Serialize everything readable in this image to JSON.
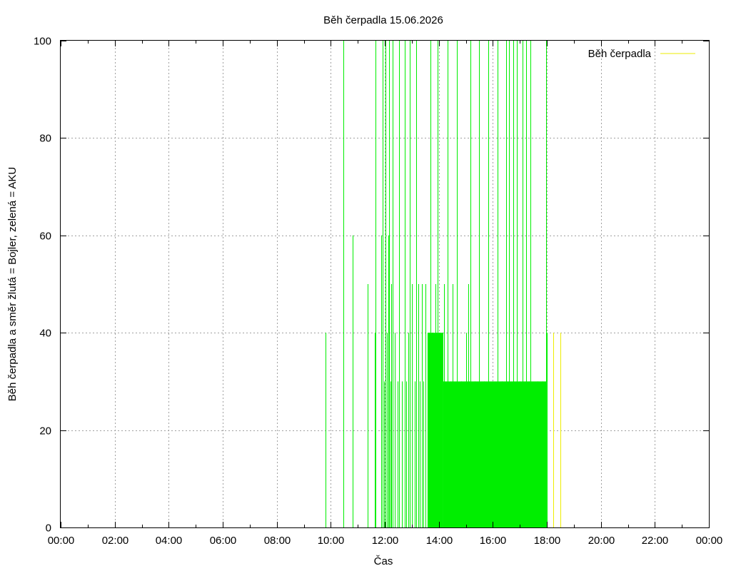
{
  "chart_data": {
    "type": "line",
    "title": "Běh čerpadla 15.06.2026",
    "xlabel": "Čas",
    "ylabel": "Běh čerpadla a směr žlutá = Bojler, zelená = AKU",
    "x_ticks": [
      "00:00",
      "02:00",
      "04:00",
      "06:00",
      "08:00",
      "10:00",
      "12:00",
      "14:00",
      "16:00",
      "18:00",
      "20:00",
      "22:00",
      "00:00"
    ],
    "xlim": [
      0,
      24
    ],
    "ylim": [
      0,
      100
    ],
    "y_ticks": [
      0,
      20,
      40,
      60,
      80,
      100
    ],
    "grid": true,
    "legend": {
      "position": "top-right",
      "entries": [
        "Běh čerpadla"
      ]
    },
    "colors": {
      "aku": "#00ee00",
      "bojler": "#eeee00",
      "legend_line": "#eeee00"
    },
    "series": [
      {
        "name": "Běh čerpadla",
        "color": "#eeee00",
        "spikes": [
          {
            "x": "18:15",
            "y": 40
          },
          {
            "x": "18:30",
            "y": 40
          }
        ]
      },
      {
        "color": "#00ee00",
        "spikes": [
          {
            "x": "09:48",
            "y": 40
          },
          {
            "x": "10:28",
            "y": 100
          },
          {
            "x": "10:48",
            "y": 60
          },
          {
            "x": "11:22",
            "y": 50
          },
          {
            "x": "11:38",
            "y": 40
          },
          {
            "x": "11:40",
            "y": 100
          },
          {
            "x": "11:52",
            "y": 60
          },
          {
            "x": "11:55",
            "y": 100
          },
          {
            "x": "11:58",
            "y": 30
          },
          {
            "x": "12:02",
            "y": 100
          },
          {
            "x": "12:05",
            "y": 40
          },
          {
            "x": "12:08",
            "y": 60
          },
          {
            "x": "12:10",
            "y": 100
          },
          {
            "x": "12:12",
            "y": 30
          },
          {
            "x": "12:14",
            "y": 50
          },
          {
            "x": "12:18",
            "y": 100
          },
          {
            "x": "12:22",
            "y": 40
          },
          {
            "x": "12:28",
            "y": 30
          },
          {
            "x": "12:32",
            "y": 100
          },
          {
            "x": "12:38",
            "y": 30
          },
          {
            "x": "12:44",
            "y": 100
          },
          {
            "x": "12:48",
            "y": 30
          },
          {
            "x": "12:52",
            "y": 40
          },
          {
            "x": "12:56",
            "y": 100
          },
          {
            "x": "13:00",
            "y": 50
          },
          {
            "x": "13:06",
            "y": 30
          },
          {
            "x": "13:10",
            "y": 100
          },
          {
            "x": "13:14",
            "y": 50
          },
          {
            "x": "13:18",
            "y": 30
          },
          {
            "x": "13:22",
            "y": 50
          },
          {
            "x": "13:26",
            "y": 30
          },
          {
            "x": "13:30",
            "y": 50
          },
          {
            "x": "13:38",
            "y": 40
          },
          {
            "x": "13:42",
            "y": 100
          },
          {
            "x": "13:46",
            "y": 40
          },
          {
            "x": "13:52",
            "y": 50
          },
          {
            "x": "13:58",
            "y": 100
          },
          {
            "x": "14:02",
            "y": 40
          },
          {
            "x": "14:12",
            "y": 50
          },
          {
            "x": "14:20",
            "y": 100
          },
          {
            "x": "14:26",
            "y": 30
          },
          {
            "x": "14:30",
            "y": 50
          },
          {
            "x": "14:40",
            "y": 100
          },
          {
            "x": "14:50",
            "y": 30
          },
          {
            "x": "15:00",
            "y": 40
          },
          {
            "x": "15:06",
            "y": 50
          },
          {
            "x": "15:10",
            "y": 100
          },
          {
            "x": "15:20",
            "y": 30
          },
          {
            "x": "15:30",
            "y": 100
          },
          {
            "x": "15:40",
            "y": 30
          },
          {
            "x": "15:50",
            "y": 100
          },
          {
            "x": "16:00",
            "y": 30
          },
          {
            "x": "16:10",
            "y": 100
          },
          {
            "x": "16:20",
            "y": 30
          },
          {
            "x": "16:30",
            "y": 100
          },
          {
            "x": "16:36",
            "y": 100
          },
          {
            "x": "16:46",
            "y": 100
          },
          {
            "x": "16:54",
            "y": 100
          },
          {
            "x": "17:00",
            "y": 30
          },
          {
            "x": "17:06",
            "y": 100
          },
          {
            "x": "17:14",
            "y": 100
          },
          {
            "x": "17:20",
            "y": 30
          },
          {
            "x": "17:24",
            "y": 100
          },
          {
            "x": "17:40",
            "y": 30
          },
          {
            "x": "17:50",
            "y": 30
          },
          {
            "x": "17:58",
            "y": 100
          },
          {
            "x": "18:00",
            "y": 40
          }
        ]
      }
    ],
    "filled_blocks": [
      {
        "color": "#00ee00",
        "x_start": "13:35",
        "x_end": "14:10",
        "y": 40
      },
      {
        "color": "#00ee00",
        "x_start": "14:10",
        "x_end": "18:00",
        "y": 30
      }
    ]
  }
}
